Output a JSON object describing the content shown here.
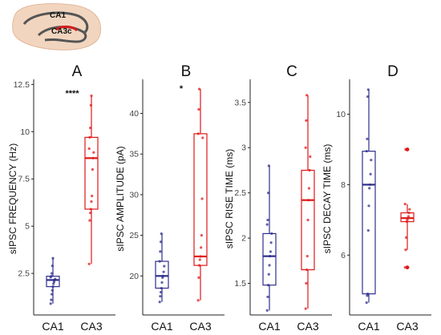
{
  "inset": {
    "label_top": "CA1",
    "label_bottom": "CA3c",
    "label_top_color": "#3a3ab0",
    "label_bottom_color": "#d41c1c"
  },
  "colors": {
    "CA1": "#2e2e8c",
    "CA3": "#e01818"
  },
  "chart_data": [
    {
      "type": "box",
      "panel": "A",
      "ylabel": "sIPSC FREQUENCY (Hz)",
      "categories": [
        "CA1",
        "CA3"
      ],
      "yticks": [
        2.5,
        5,
        7.5,
        10,
        12.5
      ],
      "ytick_labels": [
        "2.5",
        "5",
        "7.5",
        "10",
        "12.5"
      ],
      "ylim": [
        0.3,
        12.6
      ],
      "significance": "****",
      "sig_y": 12.0,
      "boxes": [
        {
          "group": "CA1",
          "min": 0.9,
          "q1": 1.8,
          "median": 2.15,
          "q3": 2.35,
          "max": 3.3,
          "points": [
            0.9,
            1.1,
            1.4,
            1.6,
            1.8,
            1.95,
            2.05,
            2.15,
            2.2,
            2.3,
            2.35,
            2.5,
            2.9,
            3.3
          ]
        },
        {
          "group": "CA3",
          "min": 3.0,
          "q1": 5.9,
          "median": 8.6,
          "q3": 9.7,
          "max": 11.9,
          "points": [
            3.0,
            5.3,
            5.7,
            5.9,
            6.3,
            6.6,
            8.0,
            8.6,
            8.9,
            9.1,
            9.7,
            10.2,
            11.4,
            11.9
          ]
        }
      ]
    },
    {
      "type": "box",
      "panel": "B",
      "ylabel": "sIPSC AMPLITUDE (pA)",
      "categories": [
        "CA1",
        "CA3"
      ],
      "yticks": [
        20,
        25,
        30,
        35,
        40
      ],
      "ytick_labels": [
        "20",
        "25",
        "30",
        "35",
        "40"
      ],
      "ylim": [
        15.2,
        43.8
      ],
      "significance": "*",
      "sig_y": 43.0,
      "boxes": [
        {
          "group": "CA1",
          "min": 16.8,
          "q1": 18.5,
          "median": 20.0,
          "q3": 21.8,
          "max": 25.2,
          "points": [
            16.8,
            17.5,
            18.0,
            18.5,
            19.2,
            19.8,
            20.0,
            20.5,
            21.2,
            21.8,
            23.0,
            24.2,
            25.2
          ]
        },
        {
          "group": "CA3",
          "min": 17.0,
          "q1": 21.3,
          "median": 22.4,
          "q3": 37.5,
          "max": 43.0,
          "points": [
            17.0,
            19.8,
            21.3,
            22.0,
            22.4,
            23.5,
            25.0,
            29.5,
            37.0,
            37.5,
            40.5,
            43.0
          ]
        }
      ]
    },
    {
      "type": "box",
      "panel": "C",
      "ylabel": "sIPSC RISE TIME (ms)",
      "categories": [
        "CA1",
        "CA3"
      ],
      "yticks": [
        1.5,
        2.0,
        2.5,
        3.0,
        3.5
      ],
      "ytick_labels": [
        "1.5",
        "2",
        "2.5",
        "3",
        "3.5"
      ],
      "ylim": [
        1.15,
        3.72
      ],
      "boxes": [
        {
          "group": "CA1",
          "min": 1.2,
          "q1": 1.48,
          "median": 1.8,
          "q3": 2.05,
          "max": 2.8,
          "points": [
            1.2,
            1.35,
            1.48,
            1.6,
            1.7,
            1.8,
            1.85,
            1.95,
            2.05,
            2.15,
            2.2,
            2.5,
            2.8
          ]
        },
        {
          "group": "CA3",
          "min": 1.22,
          "q1": 1.65,
          "median": 2.42,
          "q3": 2.75,
          "max": 3.58,
          "points": [
            1.22,
            1.5,
            1.65,
            1.8,
            2.2,
            2.42,
            2.55,
            2.75,
            2.9,
            3.0,
            3.3,
            3.58
          ]
        }
      ]
    },
    {
      "type": "box",
      "panel": "D",
      "ylabel": "sIPSC DECAY TIME (ms)",
      "categories": [
        "CA1",
        "CA3"
      ],
      "yticks": [
        6,
        8,
        10
      ],
      "ytick_labels": [
        "6",
        "8",
        "10"
      ],
      "ylim": [
        4.3,
        10.9
      ],
      "boxes": [
        {
          "group": "CA1",
          "min": 4.65,
          "q1": 4.9,
          "median": 8.0,
          "q3": 8.95,
          "max": 10.7,
          "points": [
            4.65,
            4.85,
            4.9,
            6.7,
            7.4,
            7.9,
            8.0,
            8.3,
            8.7,
            8.95,
            9.3,
            10.5,
            10.7
          ]
        },
        {
          "group": "CA3",
          "min": 6.15,
          "q1": 6.95,
          "median": 7.05,
          "q3": 7.2,
          "max": 7.45,
          "outliers": [
            5.65,
            9.0
          ],
          "points": [
            5.65,
            6.15,
            6.5,
            6.95,
            7.0,
            7.05,
            7.1,
            7.2,
            7.3,
            7.45,
            9.0
          ]
        }
      ]
    }
  ]
}
